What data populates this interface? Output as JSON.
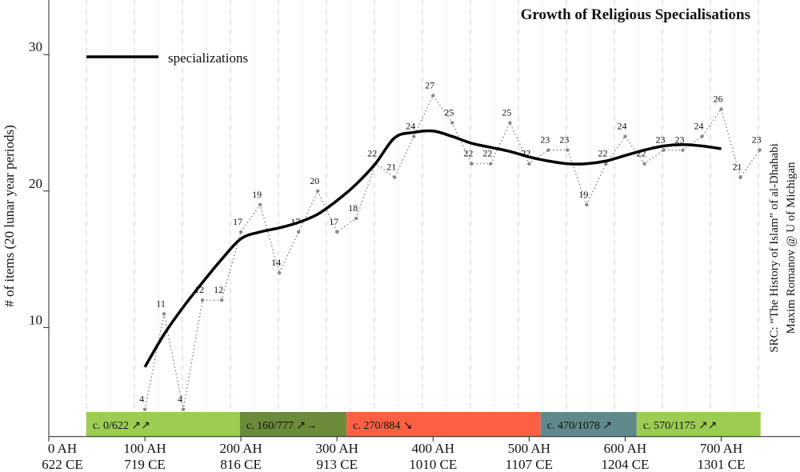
{
  "chart_data": {
    "type": "line",
    "title": "Growth of Religious Specialisations",
    "y_label": "# of items (20 lunar year periods)",
    "source": "SRC: “The History of Islam” of al-Dhahabi",
    "author": "Maxim Romanov @ U of Michigan",
    "x": [
      100,
      120,
      140,
      160,
      180,
      200,
      220,
      240,
      260,
      280,
      300,
      320,
      340,
      360,
      380,
      400,
      420,
      440,
      460,
      480,
      500,
      520,
      540,
      560,
      580,
      600,
      620,
      640,
      660,
      680,
      700,
      720,
      740
    ],
    "points": {
      "color": "#888888",
      "values": [
        4,
        11,
        4,
        12,
        12,
        17,
        19,
        14,
        17,
        20,
        17,
        18,
        22,
        21,
        24,
        27,
        25,
        22,
        22,
        25,
        22,
        23,
        23,
        19,
        22,
        24,
        22,
        23,
        23,
        24,
        26,
        21,
        23
      ]
    },
    "line": {
      "name": "specializations",
      "color": "#000000",
      "values": [
        7.1,
        9.5,
        11.5,
        13.3,
        15.0,
        16.5,
        17.0,
        17.3,
        17.7,
        18.3,
        19.3,
        20.5,
        22.0,
        23.9,
        24.3,
        24.4,
        24.0,
        23.5,
        23.2,
        22.9,
        22.5,
        22.2,
        22.0,
        22.0,
        22.2,
        22.6,
        23.0,
        23.3,
        23.4,
        23.3,
        23.1,
        null,
        null
      ]
    },
    "bands": [
      {
        "label": "c. 0/622 ↗↗",
        "start": 39,
        "end": 199,
        "color": "#9ccc52"
      },
      {
        "label": "c. 160/777 ↗→",
        "start": 199,
        "end": 310,
        "color": "#6b8a3a"
      },
      {
        "label": "c. 270/884 ↘",
        "start": 310,
        "end": 512,
        "color": "#fc6044"
      },
      {
        "label": "c. 470/1078 ↗",
        "start": 512,
        "end": 612,
        "color": "#5f8a8b"
      },
      {
        "label": "c. 570/1175 ↗↗",
        "start": 612,
        "end": 741,
        "color": "#9ccc52"
      }
    ],
    "xlim": [
      0,
      782
    ],
    "ylim": [
      2,
      34
    ],
    "yticks": [
      10,
      20,
      30
    ],
    "xticks": [
      {
        "value": 0,
        "label": "0 AH"
      },
      {
        "value": 100,
        "label": "100 AH"
      },
      {
        "value": 200,
        "label": "200 AH"
      },
      {
        "value": 300,
        "label": "300 AH"
      },
      {
        "value": 400,
        "label": "400 AH"
      },
      {
        "value": 500,
        "label": "500 AH"
      },
      {
        "value": 600,
        "label": "600 AH"
      },
      {
        "value": 700,
        "label": "700 AH"
      }
    ],
    "xtick_labels_ce": [
      "622 CE",
      "719 CE",
      "816 CE",
      "913 CE",
      "1010 CE",
      "1107 CE",
      "1204 CE",
      "1301 CE"
    ]
  }
}
